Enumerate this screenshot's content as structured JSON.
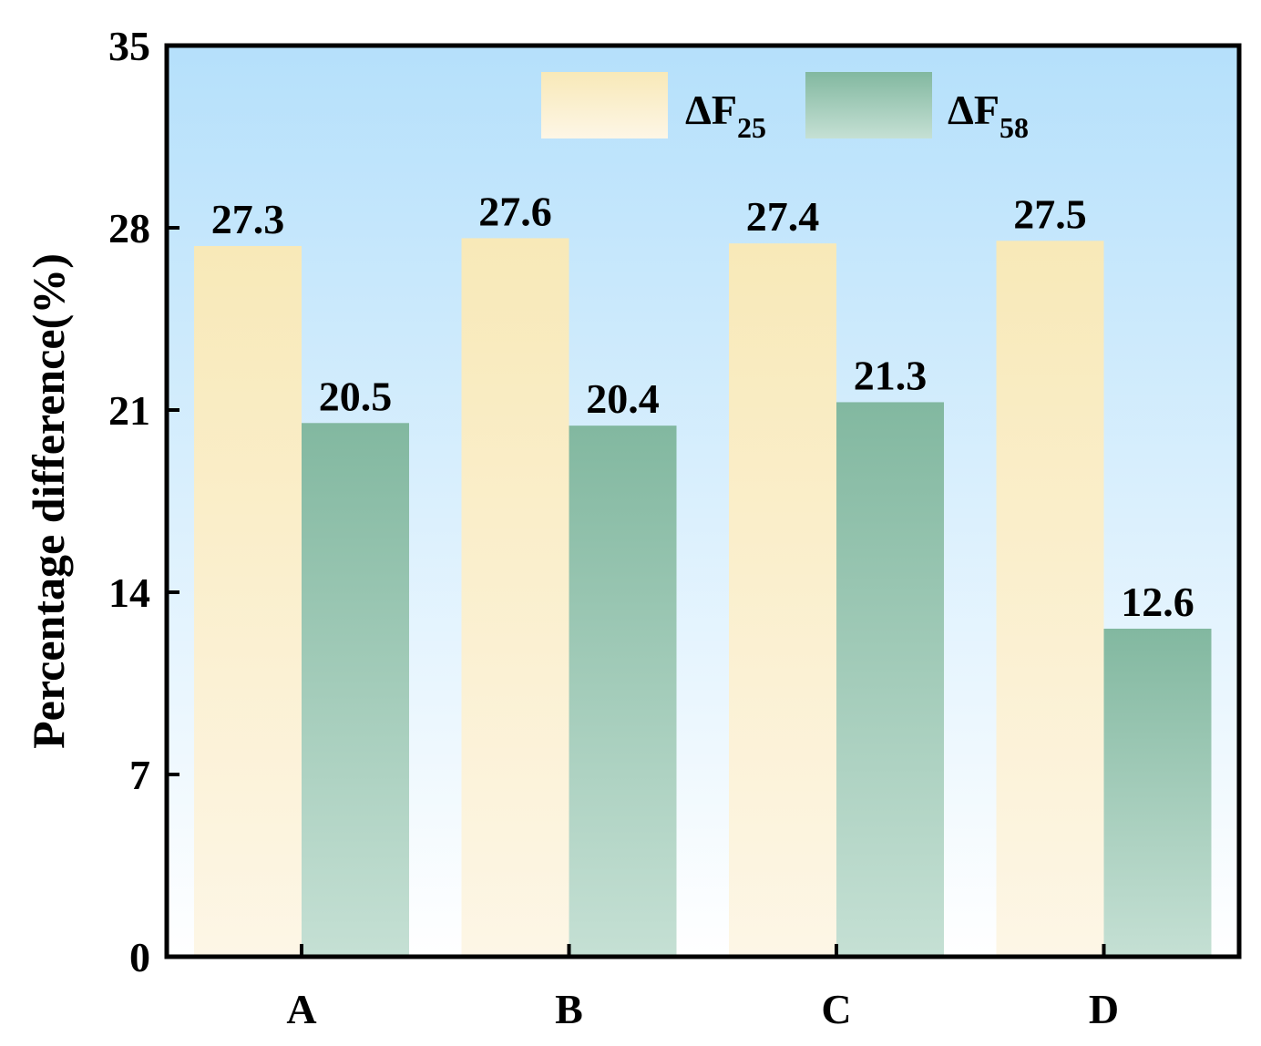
{
  "chart_data": {
    "type": "bar",
    "categories": [
      "A",
      "B",
      "C",
      "D"
    ],
    "series": [
      {
        "name": "ΔF25",
        "legend_main": "ΔF",
        "legend_sub": "25",
        "values": [
          27.3,
          27.6,
          27.4,
          27.5
        ],
        "labels": [
          "27.3",
          "27.6",
          "27.4",
          "27.5"
        ],
        "color_top": "#f8e9b8",
        "color_bottom": "#fdf6e6"
      },
      {
        "name": "ΔF58",
        "legend_main": "ΔF",
        "legend_sub": "58",
        "values": [
          20.5,
          20.4,
          21.3,
          12.6
        ],
        "labels": [
          "20.5",
          "20.4",
          "21.3",
          "12.6"
        ],
        "color_top": "#82b8a0",
        "color_bottom": "#c5e0d4"
      }
    ],
    "ylabel": "Percentage difference(%)",
    "xlabel": "",
    "ylim": [
      0,
      35
    ],
    "yticks": [
      0,
      7,
      14,
      21,
      28,
      35
    ],
    "ytick_labels": [
      "0",
      "7",
      "14",
      "21",
      "28",
      "35"
    ],
    "legend_position": "top-right",
    "background_gradient": [
      "#b5e0fb",
      "#ffffff"
    ],
    "grid": false
  }
}
